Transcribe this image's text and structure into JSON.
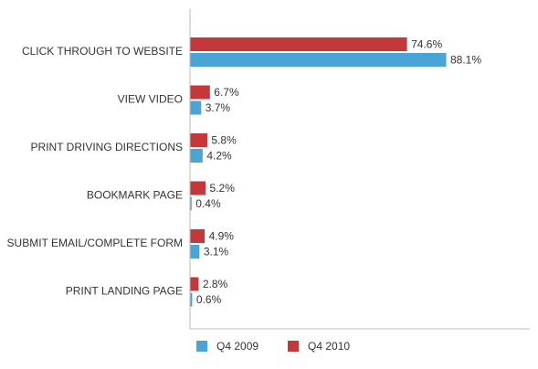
{
  "chart_data": {
    "type": "bar",
    "orientation": "horizontal",
    "categories": [
      "CLICK THROUGH TO WEBSITE",
      "VIEW VIDEO",
      "PRINT DRIVING DIRECTIONS",
      "BOOKMARK PAGE",
      "SUBMIT EMAIL/COMPLETE FORM",
      "PRINT LANDING PAGE"
    ],
    "series": [
      {
        "name": "Q4 2009",
        "color": "#4aa5d6",
        "values": [
          88.1,
          3.7,
          4.2,
          0.4,
          3.1,
          0.6
        ],
        "value_labels": [
          "88.1%",
          "3.7%",
          "4.2%",
          "0.4%",
          "3.1%",
          "0.6%"
        ]
      },
      {
        "name": "Q4 2010",
        "color": "#c4383a",
        "values": [
          74.6,
          6.7,
          5.8,
          5.2,
          4.9,
          2.8
        ],
        "value_labels": [
          "74.6%",
          "6.7%",
          "5.8%",
          "5.2%",
          "4.9%",
          "2.8%"
        ]
      }
    ]
  }
}
